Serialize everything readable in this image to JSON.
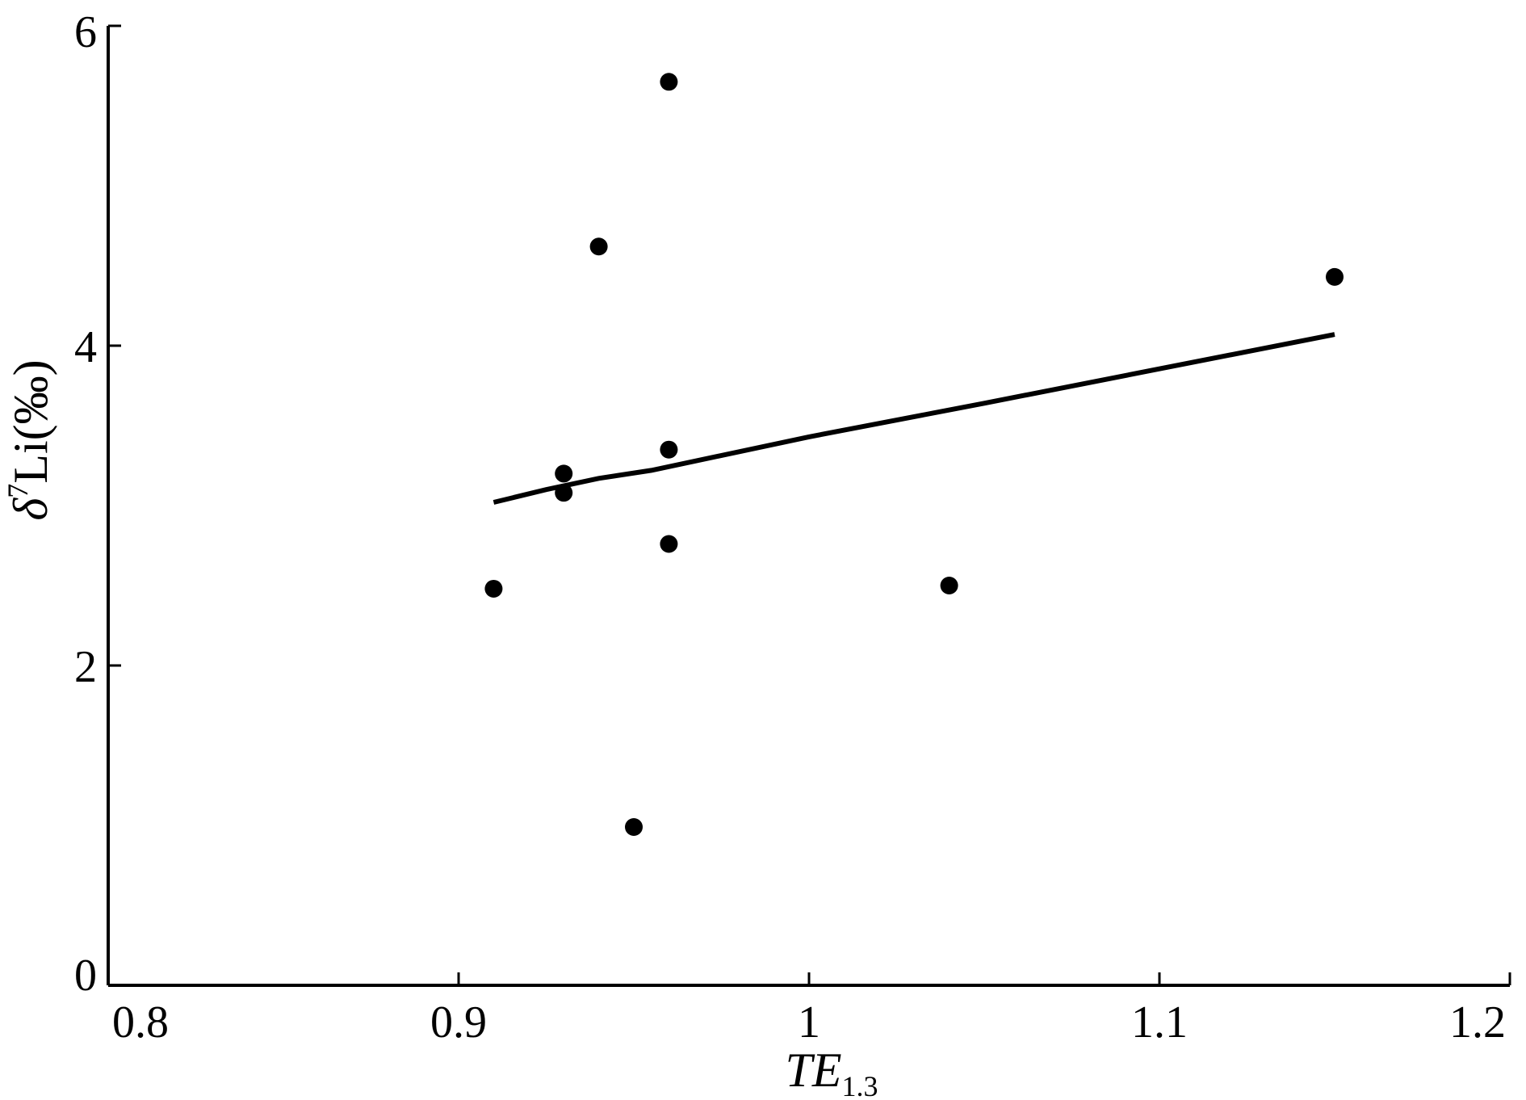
{
  "chart_data": {
    "type": "scatter",
    "title": "",
    "xlabel": "TE",
    "xlabel_subscript": "1.3",
    "ylabel_prefix": "δ",
    "ylabel_superscript": "7",
    "ylabel_rest": "Li(‰)",
    "xlim": [
      0.8,
      1.2
    ],
    "ylim": [
      0,
      6
    ],
    "xticks": [
      0.8,
      0.9,
      1,
      1.1,
      1.2
    ],
    "xtick_labels": [
      "0.8",
      "0.9",
      "1",
      "1.1",
      "1.2"
    ],
    "yticks": [
      0,
      2,
      4,
      6
    ],
    "ytick_labels": [
      "0",
      "2",
      "4",
      "6"
    ],
    "grid": false,
    "legend": "none",
    "points": [
      {
        "x": 0.91,
        "y": 2.48
      },
      {
        "x": 0.93,
        "y": 3.2
      },
      {
        "x": 0.93,
        "y": 3.08
      },
      {
        "x": 0.94,
        "y": 4.62
      },
      {
        "x": 0.95,
        "y": 0.99
      },
      {
        "x": 0.96,
        "y": 5.65
      },
      {
        "x": 0.96,
        "y": 3.35
      },
      {
        "x": 0.96,
        "y": 2.76
      },
      {
        "x": 1.04,
        "y": 2.5
      },
      {
        "x": 1.15,
        "y": 4.43
      }
    ],
    "trendline": [
      {
        "x": 0.91,
        "y": 3.02
      },
      {
        "x": 0.925,
        "y": 3.1
      },
      {
        "x": 0.94,
        "y": 3.17
      },
      {
        "x": 0.955,
        "y": 3.22
      },
      {
        "x": 1.0,
        "y": 3.43
      },
      {
        "x": 1.05,
        "y": 3.64
      },
      {
        "x": 1.15,
        "y": 4.07
      }
    ],
    "colors": {
      "points": "#000000",
      "line": "#000000",
      "axes": "#000000"
    }
  }
}
